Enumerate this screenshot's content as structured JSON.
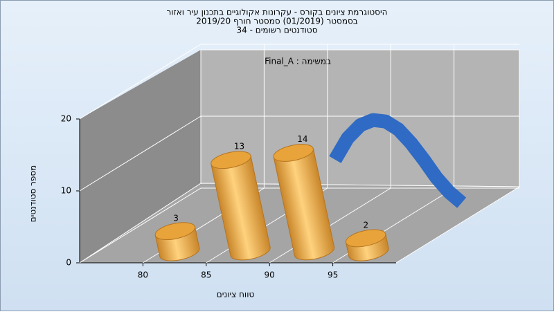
{
  "chart_data": {
    "type": "histogram",
    "title": [
      "היסטוגרמת ציונים בקורס - עקרונות אקולוגיים בתכנון עיר ואזור",
      "בסמסטר  (01/2019)  סמסטר חורף 2019/20",
      "סטודנטים רשומים - 34"
    ],
    "annotation": "Final_A : במשימה",
    "x_label": "טווח ציונים",
    "y_label": "מספר סטודנטים",
    "bins": [
      80,
      85,
      90,
      95,
      100
    ],
    "values": [
      3,
      13,
      14,
      2
    ],
    "color": "#e8a33a",
    "curve": {
      "color": "#2f6bc4",
      "x": [
        88,
        89,
        90,
        91,
        92,
        93,
        94,
        95,
        96,
        97,
        98
      ],
      "values": [
        8,
        11,
        12.8,
        13.5,
        13.3,
        12.2,
        10.3,
        8,
        5.5,
        3.5,
        2
      ]
    },
    "xlim": [
      75,
      100
    ],
    "xticks": [
      80,
      85,
      90,
      95
    ],
    "ylim": [
      0,
      20
    ],
    "yticks": [
      0,
      10,
      20
    ],
    "grid": true
  }
}
